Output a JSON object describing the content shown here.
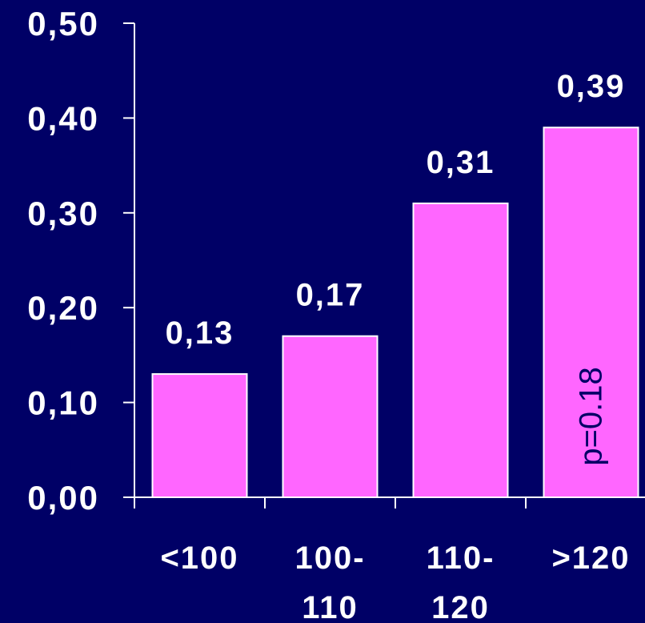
{
  "chart_data": {
    "type": "bar",
    "categories": [
      "<100",
      "100-110",
      "110-120",
      ">120"
    ],
    "category_lines": [
      [
        "<100"
      ],
      [
        "100-",
        "110"
      ],
      [
        "110-",
        "120"
      ],
      [
        ">120"
      ]
    ],
    "values": [
      0.13,
      0.17,
      0.31,
      0.39
    ],
    "value_labels": [
      "0,13",
      "0,17",
      "0,31",
      "0,39"
    ],
    "ylim": [
      0,
      0.5
    ],
    "yticks": [
      0,
      0.1,
      0.2,
      0.3,
      0.4,
      0.5
    ],
    "ytick_labels": [
      "0,00",
      "0,10",
      "0,20",
      "0,30",
      "0,40",
      "0,50"
    ],
    "annotation": "p=0.18",
    "grid": false,
    "colors": {
      "background": "#000066",
      "bar": "#ff66ff",
      "bar_outline": "#ffffff",
      "axis": "#ffffff",
      "text": "#ffffff",
      "annotation": "#000066"
    }
  }
}
